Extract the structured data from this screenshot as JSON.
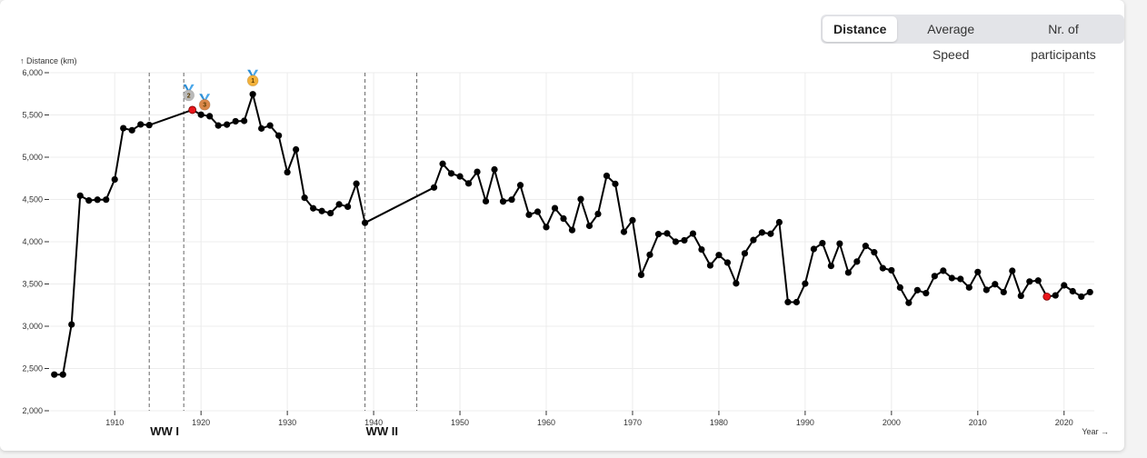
{
  "toggles": [
    {
      "label": "Distance",
      "active": true
    },
    {
      "label": "Average Speed",
      "active": false
    },
    {
      "label": "Nr. of participants",
      "active": false
    }
  ],
  "chart_data": {
    "type": "line",
    "ylabel": "↑ Distance (km)",
    "xlabel": "Year →",
    "xlim": [
      1902.5,
      2023.5
    ],
    "ylim": [
      2000,
      6000
    ],
    "x_ticks": [
      1910,
      1920,
      1930,
      1940,
      1950,
      1960,
      1970,
      1980,
      1990,
      2000,
      2010,
      2020
    ],
    "y_ticks": [
      2000,
      2500,
      3000,
      3500,
      4000,
      4500,
      5000,
      5500,
      6000
    ],
    "y_tick_labels": [
      "2,000",
      "2,500",
      "3,000",
      "3,500",
      "4,000",
      "4,500",
      "5,000",
      "5,500",
      "6,000"
    ],
    "grid": true,
    "line_color": "#000000",
    "highlight_color": "#e8161b",
    "series": [
      {
        "x": [
          1903,
          1904,
          1905,
          1906,
          1907,
          1908,
          1909,
          1910,
          1911,
          1912,
          1913,
          1914,
          1919,
          1920,
          1921,
          1922,
          1923,
          1924,
          1925,
          1926,
          1927,
          1928,
          1929,
          1930,
          1931,
          1932,
          1933,
          1934,
          1935,
          1936,
          1937,
          1938,
          1939,
          1947,
          1948,
          1949,
          1950,
          1951,
          1952,
          1953,
          1954,
          1955,
          1956,
          1957,
          1958,
          1959,
          1960,
          1961,
          1962,
          1963,
          1964,
          1965,
          1966,
          1967,
          1968,
          1969,
          1970,
          1971,
          1972,
          1973,
          1974,
          1975,
          1976,
          1977,
          1978,
          1979,
          1980,
          1981,
          1982,
          1983,
          1984,
          1985,
          1986,
          1987,
          1988,
          1989,
          1990,
          1991,
          1992,
          1993,
          1994,
          1995,
          1996,
          1997,
          1998,
          1999,
          2000,
          2001,
          2002,
          2003,
          2004,
          2005,
          2006,
          2007,
          2008,
          2009,
          2010,
          2011,
          2012,
          2013,
          2014,
          2015,
          2016,
          2017,
          2018,
          2019,
          2020,
          2021,
          2022,
          2023
        ],
        "y": [
          2428,
          2428,
          3021,
          4545,
          4488,
          4497,
          4498,
          4737,
          5343,
          5319,
          5388,
          5380,
          5560,
          5503,
          5485,
          5375,
          5386,
          5425,
          5430,
          5745,
          5340,
          5375,
          5256,
          4822,
          5091,
          4520,
          4395,
          4363,
          4338,
          4442,
          4415,
          4687,
          4224,
          4642,
          4922,
          4808,
          4773,
          4690,
          4827,
          4479,
          4855,
          4476,
          4498,
          4669,
          4319,
          4355,
          4173,
          4397,
          4274,
          4138,
          4504,
          4188,
          4329,
          4780,
          4684,
          4117,
          4254,
          3608,
          3846,
          4090,
          4098,
          4000,
          4017,
          4096,
          3908,
          3720,
          3842,
          3753,
          3507,
          3862,
          4020,
          4109,
          4094,
          4231,
          3286,
          3285,
          3504,
          3914,
          3983,
          3714,
          3978,
          3635,
          3765,
          3950,
          3875,
          3687,
          3662,
          3458,
          3277,
          3427,
          3391,
          3593,
          3657,
          3570,
          3559,
          3459,
          3642,
          3430,
          3497,
          3404,
          3656,
          3360,
          3529,
          3540,
          3351,
          3365,
          3484,
          3414,
          3350,
          3404
        ],
        "highlights": [
          1919,
          2018
        ]
      }
    ],
    "war_periods": [
      {
        "label": "WW I",
        "start": 1914,
        "end": 1918
      },
      {
        "label": "WW II",
        "start": 1939,
        "end": 1945
      }
    ],
    "medals": [
      {
        "year": 1919,
        "rank": "2",
        "color": "#b9b9b9"
      },
      {
        "year": 1920,
        "rank": "3",
        "color": "#d9874a"
      },
      {
        "year": 1926,
        "rank": "1",
        "color": "#f3b13a"
      }
    ]
  }
}
